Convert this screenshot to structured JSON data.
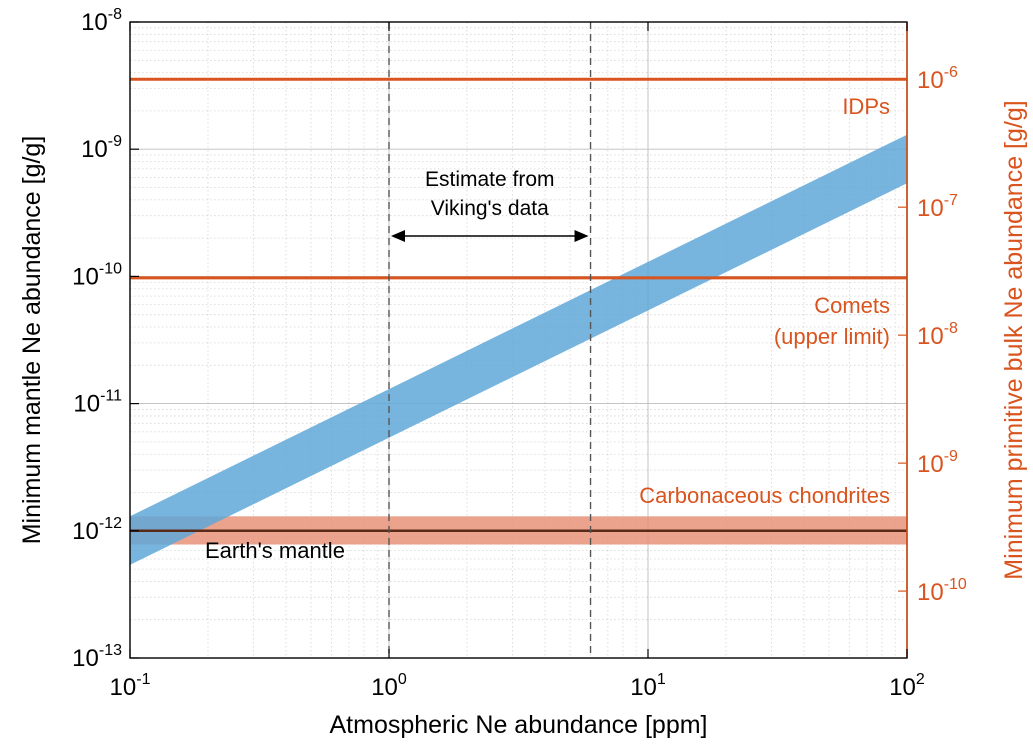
{
  "chart_data": {
    "type": "area",
    "xlabel": "Atmospheric Ne abundance [ppm]",
    "ylabel": "Minimum mantle Ne abundance [g/g]",
    "y2label": "Minimum primitive bulk Ne abundance [g/g]",
    "xscale": "log",
    "yscale": "log",
    "y2scale": "log",
    "xlim": [
      0.1,
      100
    ],
    "ylim": [
      1e-13,
      1e-08
    ],
    "y2lim": [
      3e-11,
      2.8e-06
    ],
    "grid": true,
    "x_ticks": [
      {
        "value": 0.1,
        "base": "10",
        "exp": "-1"
      },
      {
        "value": 1,
        "base": "10",
        "exp": "0"
      },
      {
        "value": 10,
        "base": "10",
        "exp": "1"
      },
      {
        "value": 100,
        "base": "10",
        "exp": "2"
      }
    ],
    "y_ticks": [
      {
        "value": 1e-13,
        "base": "10",
        "exp": "-13"
      },
      {
        "value": 1e-12,
        "base": "10",
        "exp": "-12"
      },
      {
        "value": 1e-11,
        "base": "10",
        "exp": "-11"
      },
      {
        "value": 1e-10,
        "base": "10",
        "exp": "-10"
      },
      {
        "value": 1e-09,
        "base": "10",
        "exp": "-9"
      },
      {
        "value": 1e-08,
        "base": "10",
        "exp": "-8"
      }
    ],
    "y2_ticks": [
      {
        "value": 1e-10,
        "base": "10",
        "exp": "-10"
      },
      {
        "value": 1e-09,
        "base": "10",
        "exp": "-9"
      },
      {
        "value": 1e-08,
        "base": "10",
        "exp": "-8"
      },
      {
        "value": 1e-07,
        "base": "10",
        "exp": "-7"
      },
      {
        "value": 1e-06,
        "base": "10",
        "exp": "-6"
      }
    ],
    "band": {
      "x": [
        0.1,
        100
      ],
      "y_low": [
        5.4e-13,
        5.4e-10
      ],
      "y_high": [
        1.3e-12,
        1.3e-09
      ],
      "color": "#5fa8d9"
    },
    "earth_mantle": {
      "label": "Earth's mantle",
      "y": 1e-12,
      "y_low": 7.8e-13,
      "y_high": 1.3e-12,
      "line_color": "#5a2a18",
      "band_color": "#e8937a"
    },
    "reference_lines": [
      {
        "label": "IDPs",
        "y2": 1e-06,
        "color": "#d9541e"
      },
      {
        "label": "Comets",
        "label2": "(upper limit)",
        "y2": 2.8e-08,
        "color": "#d9541e"
      },
      {
        "label": "Carbonaceous chondrites",
        "y2": 3.3e-10,
        "color": "#d9541e"
      }
    ],
    "vertical_lines": [
      {
        "x": 1
      },
      {
        "x": 6
      }
    ],
    "annotation": {
      "line1": "Estimate from",
      "line2": "Viking's data",
      "x_from": 1,
      "x_to": 6
    },
    "colors": {
      "axis": "#000000",
      "right_axis": "#d9541e",
      "grid": "#d4d4d4"
    }
  }
}
